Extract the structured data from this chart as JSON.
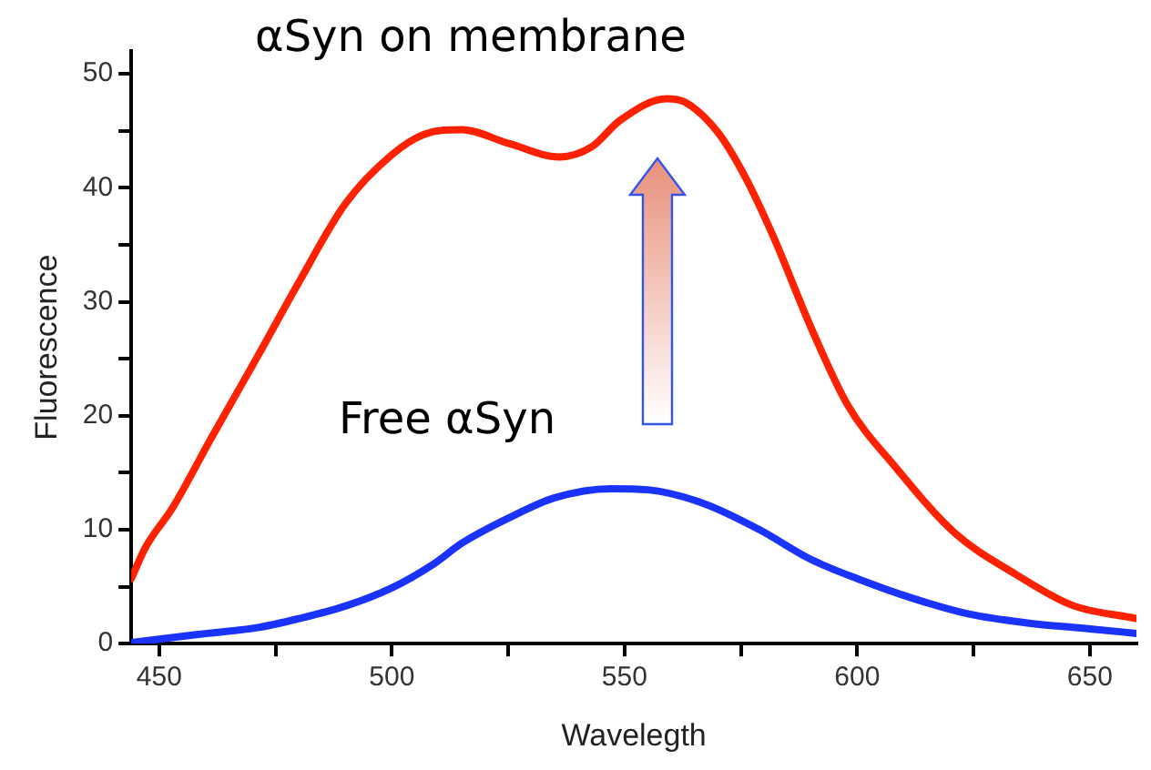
{
  "chart_data": {
    "type": "line",
    "xlabel": "Wavelegth",
    "ylabel": "Fluorescence",
    "xlim": [
      444,
      660
    ],
    "ylim": [
      0,
      52
    ],
    "xticks": [
      450,
      {
        "value": 475,
        "label": null
      },
      500,
      {
        "value": 525,
        "label": null
      },
      550,
      {
        "value": 575,
        "label": null
      },
      600,
      {
        "value": 625,
        "label": null
      },
      650
    ],
    "yticks": [
      0,
      {
        "value": 5,
        "label": null
      },
      10,
      {
        "value": 15,
        "label": null
      },
      20,
      {
        "value": 25,
        "label": null
      },
      30,
      {
        "value": 35,
        "label": null
      },
      40,
      {
        "value": 45,
        "label": null
      },
      50
    ],
    "legend": false,
    "marker": "none",
    "line_style": "solid",
    "series": [
      {
        "name": "αSyn on membrane",
        "color": "#ff2200",
        "x": [
          444,
          447,
          453,
          461,
          471,
          480,
          490,
          500,
          507,
          515,
          525,
          536,
          543,
          549,
          559,
          563,
          570,
          576,
          582,
          590,
          598,
          608,
          621,
          634,
          646,
          660
        ],
        "values": [
          5.7,
          8.4,
          12,
          17.9,
          25.1,
          31.7,
          38.6,
          42.9,
          44.7,
          45.1,
          43.9,
          42.7,
          43.6,
          45.9,
          47.8,
          47.5,
          44.9,
          40.9,
          35.7,
          27.8,
          20.9,
          15.6,
          9.7,
          6.1,
          3.4,
          2.2
        ]
      },
      {
        "name": "Free αSyn",
        "color": "#1a33ff",
        "x": [
          444,
          458,
          471,
          480,
          490,
          500,
          509,
          515,
          525,
          535,
          547,
          555,
          567,
          579,
          590,
          600,
          611,
          624,
          637,
          650,
          660
        ],
        "values": [
          0.1,
          0.8,
          1.4,
          2.2,
          3.3,
          4.9,
          7.0,
          8.8,
          11.0,
          12.8,
          13.6,
          13.5,
          12.3,
          10.0,
          7.4,
          5.7,
          4.1,
          2.6,
          1.8,
          1.3,
          0.9
        ]
      }
    ]
  }
}
